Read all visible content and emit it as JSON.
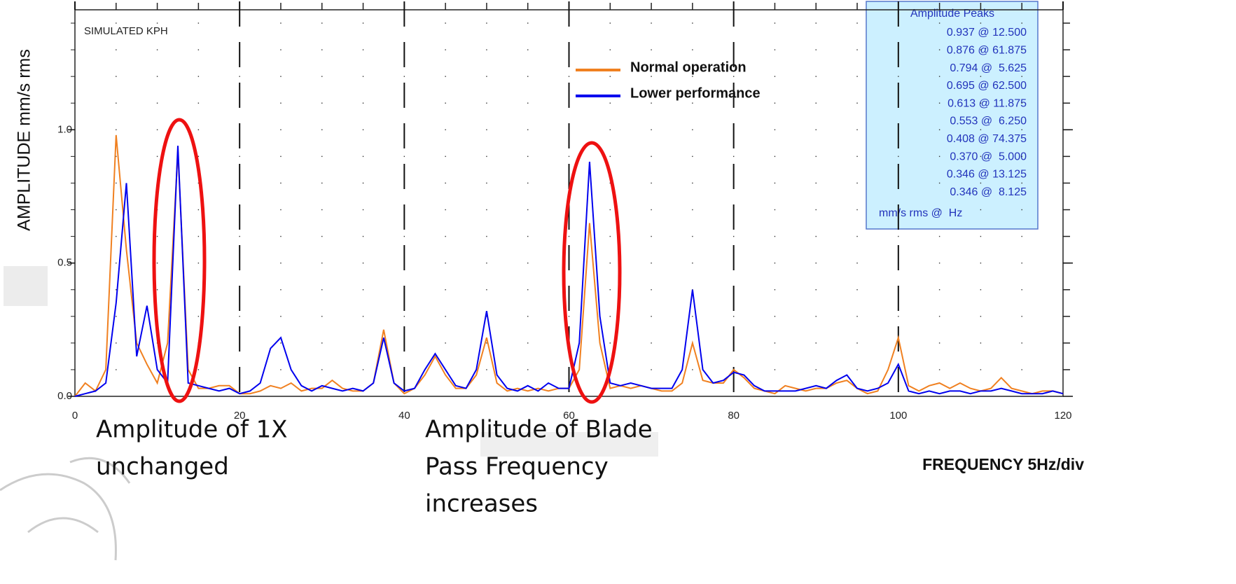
{
  "chart_data": {
    "type": "line",
    "subtitle": "SIMULATED KPH",
    "x_label": "FREQUENCY 5Hz/div",
    "y_label": "AMPLITUDE mm/s rms",
    "x": [
      0,
      1.25,
      2.5,
      3.75,
      5,
      6.25,
      7.5,
      8.75,
      10,
      11.25,
      12.5,
      13.75,
      15,
      16.25,
      17.5,
      18.75,
      20,
      21.25,
      22.5,
      23.75,
      25,
      26.25,
      27.5,
      28.75,
      30,
      31.25,
      32.5,
      33.75,
      35,
      36.25,
      37.5,
      38.75,
      40,
      41.25,
      42.5,
      43.75,
      45,
      46.25,
      47.5,
      48.75,
      50,
      51.25,
      52.5,
      53.75,
      55,
      56.25,
      57.5,
      58.75,
      60,
      61.25,
      62.5,
      63.75,
      65,
      66.25,
      67.5,
      68.75,
      70,
      71.25,
      72.5,
      73.75,
      75,
      76.25,
      77.5,
      78.75,
      80,
      81.25,
      82.5,
      83.75,
      85,
      86.25,
      87.5,
      88.75,
      90,
      91.25,
      92.5,
      93.75,
      95,
      96.25,
      97.5,
      98.75,
      100,
      101.25,
      102.5,
      103.75,
      105,
      106.25,
      107.5,
      108.75,
      110,
      111.25,
      112.5,
      113.75,
      115,
      116.25,
      117.5,
      118.75,
      120
    ],
    "series": [
      {
        "name": "Normal operation",
        "color": "#f08020",
        "values": [
          0,
          0.05,
          0.02,
          0.1,
          0.98,
          0.55,
          0.2,
          0.12,
          0.05,
          0.2,
          0.92,
          0.1,
          0.03,
          0.03,
          0.04,
          0.04,
          0.01,
          0.01,
          0.02,
          0.04,
          0.03,
          0.05,
          0.02,
          0.03,
          0.03,
          0.06,
          0.03,
          0.02,
          0.02,
          0.05,
          0.25,
          0.05,
          0.01,
          0.03,
          0.08,
          0.15,
          0.08,
          0.03,
          0.03,
          0.08,
          0.22,
          0.05,
          0.02,
          0.03,
          0.02,
          0.03,
          0.02,
          0.03,
          0.03,
          0.1,
          0.65,
          0.2,
          0.03,
          0.04,
          0.03,
          0.04,
          0.03,
          0.02,
          0.02,
          0.05,
          0.2,
          0.06,
          0.05,
          0.05,
          0.1,
          0.07,
          0.03,
          0.02,
          0.01,
          0.04,
          0.03,
          0.02,
          0.03,
          0.03,
          0.05,
          0.06,
          0.03,
          0.01,
          0.02,
          0.1,
          0.22,
          0.04,
          0.02,
          0.04,
          0.05,
          0.03,
          0.05,
          0.03,
          0.02,
          0.03,
          0.07,
          0.03,
          0.02,
          0.01,
          0.02,
          0.02,
          0.01
        ]
      },
      {
        "name": "Lower performance",
        "color": "#0000ee",
        "values": [
          0,
          0.01,
          0.02,
          0.05,
          0.35,
          0.8,
          0.15,
          0.34,
          0.1,
          0.05,
          0.94,
          0.05,
          0.04,
          0.03,
          0.02,
          0.03,
          0.01,
          0.02,
          0.05,
          0.18,
          0.22,
          0.1,
          0.04,
          0.02,
          0.04,
          0.03,
          0.02,
          0.03,
          0.02,
          0.05,
          0.22,
          0.05,
          0.02,
          0.03,
          0.1,
          0.16,
          0.1,
          0.04,
          0.03,
          0.1,
          0.32,
          0.08,
          0.03,
          0.02,
          0.04,
          0.02,
          0.05,
          0.03,
          0.03,
          0.2,
          0.88,
          0.3,
          0.05,
          0.04,
          0.05,
          0.04,
          0.03,
          0.03,
          0.03,
          0.1,
          0.4,
          0.1,
          0.05,
          0.06,
          0.09,
          0.08,
          0.04,
          0.02,
          0.02,
          0.02,
          0.02,
          0.03,
          0.04,
          0.03,
          0.06,
          0.08,
          0.03,
          0.02,
          0.03,
          0.05,
          0.12,
          0.02,
          0.01,
          0.02,
          0.01,
          0.02,
          0.02,
          0.01,
          0.02,
          0.02,
          0.03,
          0.02,
          0.01,
          0.01,
          0.01,
          0.02,
          0.01
        ]
      }
    ],
    "xlim": [
      0,
      120
    ],
    "xticks": [
      0,
      20,
      40,
      60,
      80,
      100,
      120
    ],
    "ylim": [
      0,
      1.45
    ],
    "yticks": [
      {
        "value": 0,
        "label": "0.0"
      },
      {
        "value": 0.5,
        "label": "0.5"
      },
      {
        "value": 1,
        "label": "1.0"
      }
    ],
    "grid": true,
    "legend": "top",
    "annotations": [
      [
        "Amplitude of 1X",
        "unchanged"
      ],
      [
        "Amplitude of Blade",
        "Pass Frequency",
        "increases"
      ]
    ],
    "peaks_table": {
      "title": "Amplitude Peaks",
      "rows": [
        "0.937 @ 12.500",
        "0.876 @ 61.875",
        "0.794 @  5.625",
        "0.695 @ 62.500",
        "0.613 @ 11.875",
        "0.553 @  6.250",
        "0.408 @ 74.375",
        "0.370 @  5.000",
        "0.346 @ 13.125",
        "0.346 @  8.125"
      ],
      "units": "mm/s rms @  Hz"
    }
  }
}
